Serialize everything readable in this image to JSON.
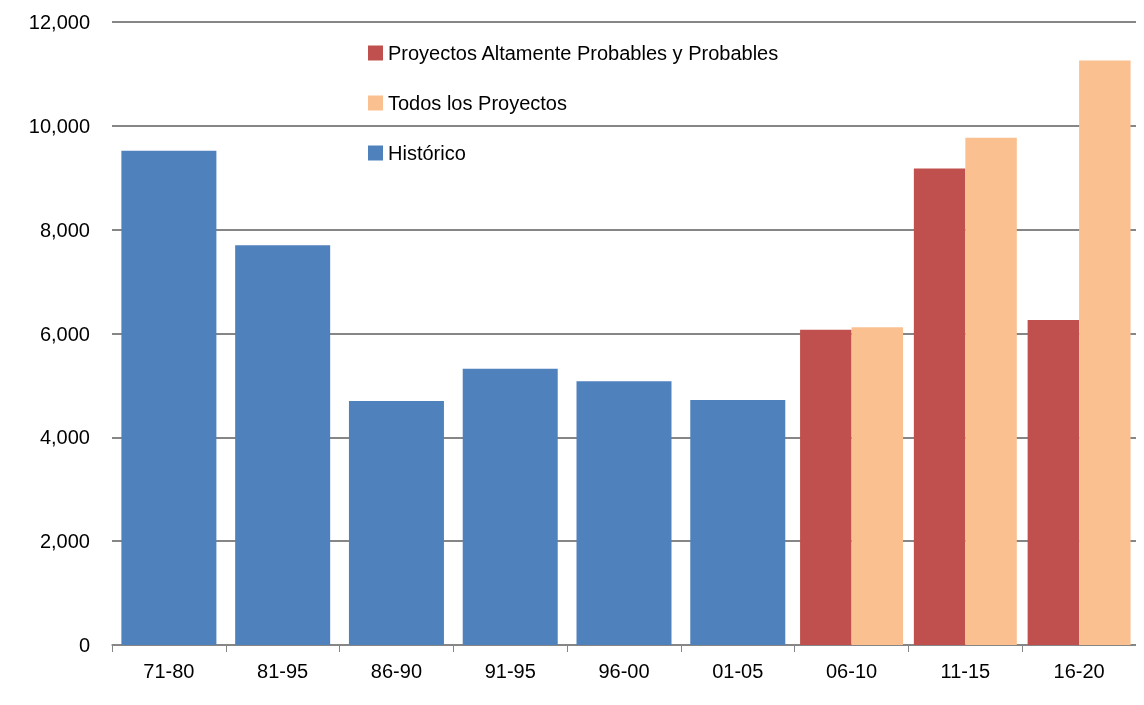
{
  "chart_data": {
    "type": "bar",
    "categories": [
      "71-80",
      "81-95",
      "86-90",
      "91-95",
      "96-00",
      "01-05",
      "06-10",
      "11-15",
      "16-20"
    ],
    "series": [
      {
        "name": "Proyectos Altamente Probables y Probables",
        "color": "#c0504d",
        "values": [
          null,
          null,
          null,
          null,
          null,
          null,
          6070,
          9180,
          6260
        ]
      },
      {
        "name": "Todos los Proyectos",
        "color": "#fac090",
        "values": [
          null,
          null,
          null,
          null,
          null,
          null,
          6120,
          9770,
          11260
        ]
      },
      {
        "name": "Histórico",
        "color": "#4f81bd",
        "values": [
          9520,
          7700,
          4700,
          5320,
          5080,
          4720,
          null,
          null,
          null
        ]
      }
    ],
    "ylim": [
      0,
      12000
    ],
    "yticks": [
      0,
      {
        "value": 2000,
        "label": "2,000"
      },
      {
        "value": 4000,
        "label": "4,000"
      },
      {
        "value": 6000,
        "label": "6,000"
      },
      {
        "value": 8000,
        "label": "8,000"
      },
      {
        "value": 10000,
        "label": "10,000"
      },
      {
        "value": 12000,
        "label": "12,000"
      }
    ],
    "grid": "y",
    "legend": "top"
  }
}
